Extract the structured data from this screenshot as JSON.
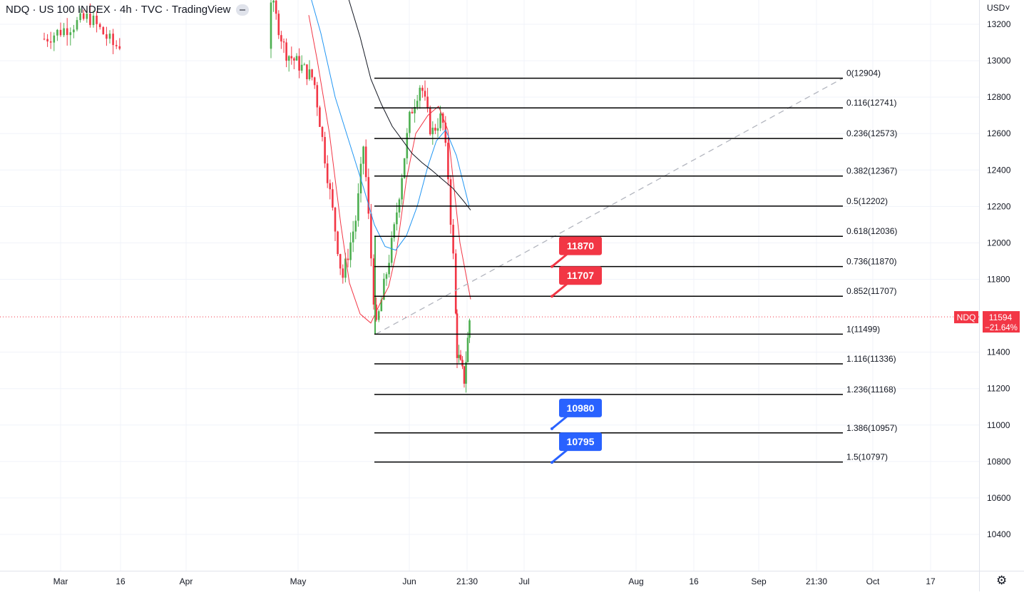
{
  "header": {
    "title": "NDQ · US 100 INDEX · 4h · TVC · TradingView",
    "currency": "USD",
    "currency_arrow": "˅"
  },
  "settings_icon": "gear-icon",
  "colors": {
    "up": "#4caf50",
    "down": "#f23645",
    "ema_fast": "#f23645",
    "ema_mid": "#2196f3",
    "ema_slow": "#131722",
    "fib": "#000000",
    "label_red": "#f23645",
    "label_blue": "#2962ff",
    "grid": "#f0f3fa",
    "trend": "#b2b5be"
  },
  "price_badge": {
    "symbol": "NDQ",
    "price": "11594",
    "change": "−21.64%"
  },
  "chart_data": {
    "type": "candlestick",
    "symbol": "NDQ",
    "interval": "4h",
    "y_axis": {
      "ticks": [
        13200,
        13000,
        12800,
        12600,
        12400,
        12200,
        12000,
        11800,
        11400,
        11200,
        11000,
        10800,
        10600,
        10400
      ],
      "range": [
        10200,
        13300
      ]
    },
    "x_axis": {
      "tick_labels": [
        "Mar",
        "16",
        "Apr",
        "May",
        "Jun",
        "21:30",
        "Jul",
        "Aug",
        "16",
        "Sep",
        "21:30",
        "Oct",
        "17"
      ]
    },
    "last_price": 11594,
    "change_pct": -21.64,
    "fibonacci": {
      "levels": [
        {
          "ratio": "0",
          "price": 12904,
          "label": "0(12904)"
        },
        {
          "ratio": "0.116",
          "price": 12741,
          "label": "0.116(12741)"
        },
        {
          "ratio": "0.236",
          "price": 12573,
          "label": "0.236(12573)"
        },
        {
          "ratio": "0.382",
          "price": 12367,
          "label": "0.382(12367)"
        },
        {
          "ratio": "0.5",
          "price": 12202,
          "label": "0.5(12202)"
        },
        {
          "ratio": "0.618",
          "price": 12036,
          "label": "0.618(12036)"
        },
        {
          "ratio": "0.736",
          "price": 11870,
          "label": "0.736(11870)"
        },
        {
          "ratio": "0.852",
          "price": 11707,
          "label": "0.852(11707)"
        },
        {
          "ratio": "1",
          "price": 11499,
          "label": "1(11499)"
        },
        {
          "ratio": "1.116",
          "price": 11336,
          "label": "1.116(11336)"
        },
        {
          "ratio": "1.236",
          "price": 11168,
          "label": "1.236(11168)"
        },
        {
          "ratio": "1.386",
          "price": 10957,
          "label": "1.386(10957)"
        },
        {
          "ratio": "1.5",
          "price": 10797,
          "label": "1.5(10797)"
        }
      ]
    },
    "callouts": [
      {
        "text": "11870",
        "price": 11870,
        "color": "red"
      },
      {
        "text": "11707",
        "price": 11707,
        "color": "red"
      },
      {
        "text": "10980",
        "price": 10980,
        "color": "blue"
      },
      {
        "text": "10795",
        "price": 10795,
        "color": "blue"
      }
    ],
    "trendline": {
      "from_price": 11499,
      "to_price": 12904,
      "style": "dashed"
    },
    "grid": true
  }
}
